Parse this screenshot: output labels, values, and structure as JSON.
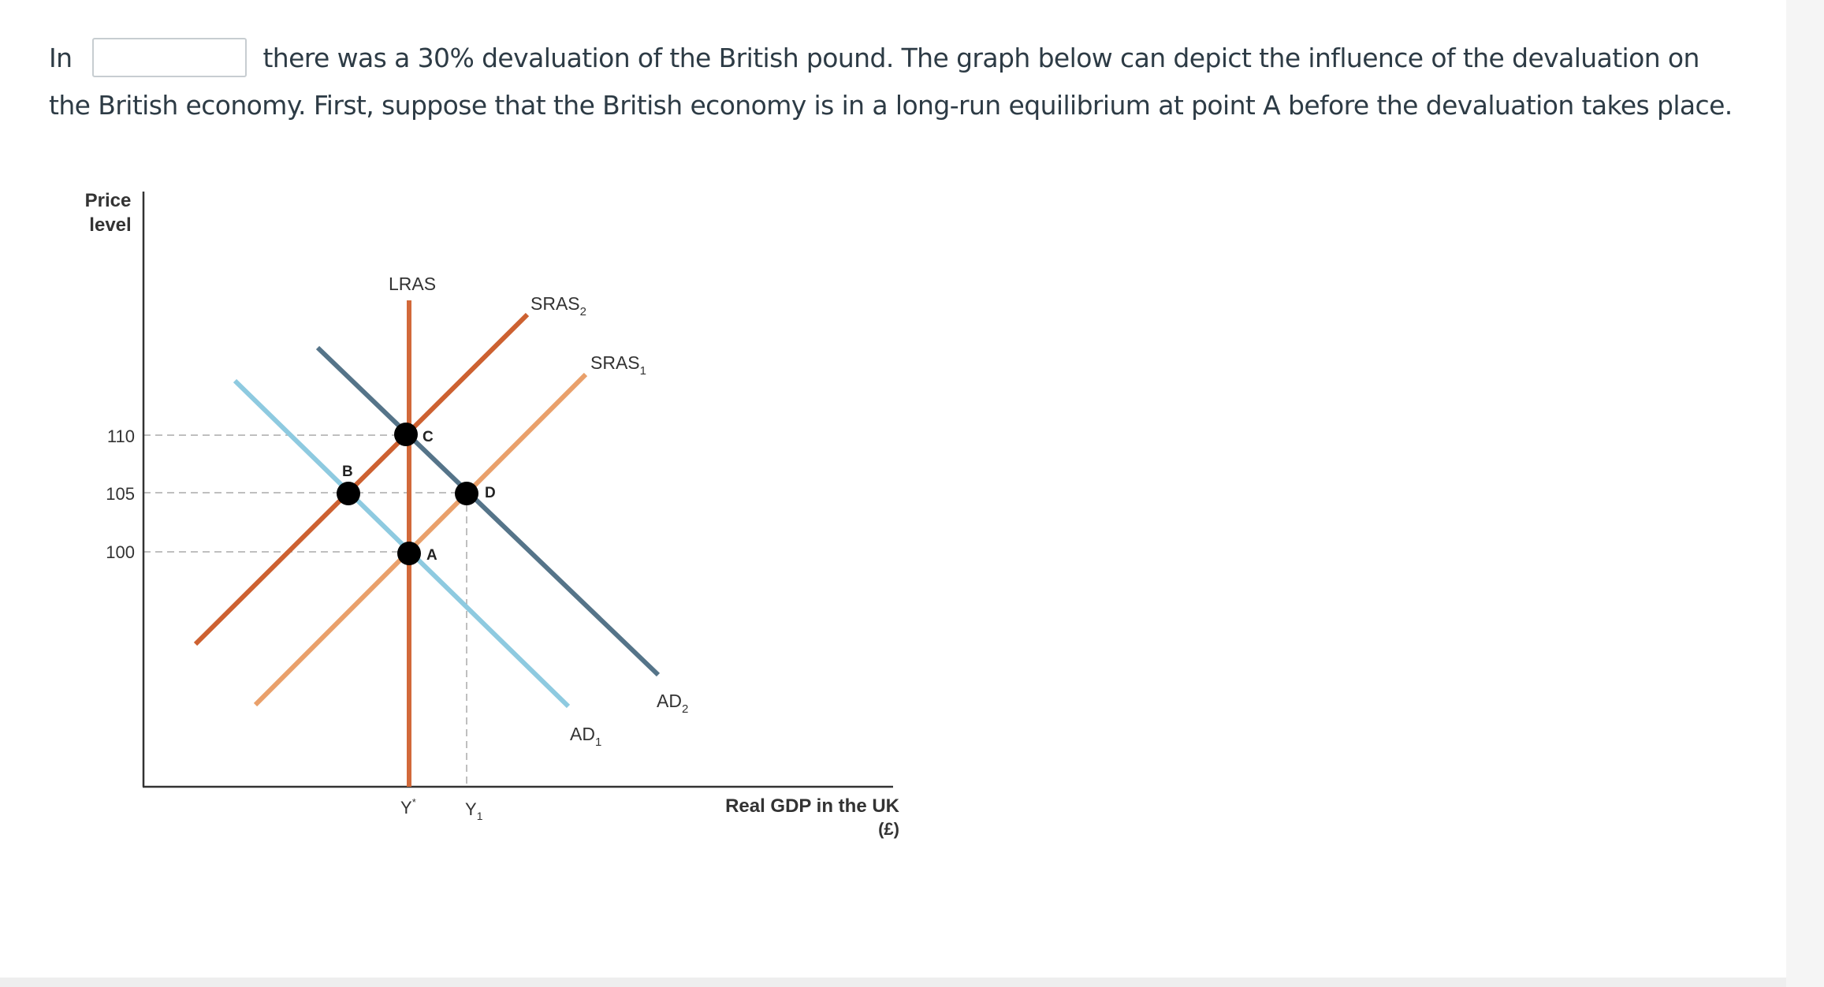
{
  "question": {
    "prefix": "In",
    "answer_value": "",
    "text": "there was a 30% devaluation of the British pound. The graph below can depict the influence of the devaluation on the British economy. First, suppose that the British economy is in a long-run equilibrium at point A before the devaluation takes place."
  },
  "graph": {
    "y_axis_label_line1": "Price",
    "y_axis_label_line2": "level",
    "x_axis_label_line1": "Real GDP in the UK",
    "x_axis_label_line2": "(£)",
    "ticks_y": [
      "110",
      "105",
      "100"
    ],
    "ticks_x": {
      "ystar": "Y",
      "ystar_sup": "*",
      "y1": "Y",
      "y1_sub": "1"
    },
    "curves": {
      "lras": "LRAS",
      "sras2": "SRAS",
      "sras2_sub": "2",
      "sras1": "SRAS",
      "sras1_sub": "1",
      "ad1": "AD",
      "ad1_sub": "1",
      "ad2": "AD",
      "ad2_sub": "2"
    },
    "points": {
      "a": "A",
      "b": "B",
      "c": "C",
      "d": "D"
    },
    "colors": {
      "lras": "#d2693a",
      "sras2": "#cd6131",
      "sras1": "#e9a06b",
      "ad1": "#8ecae0",
      "ad2": "#557489",
      "axis": "#333333",
      "guide": "#aaaaaa"
    }
  }
}
